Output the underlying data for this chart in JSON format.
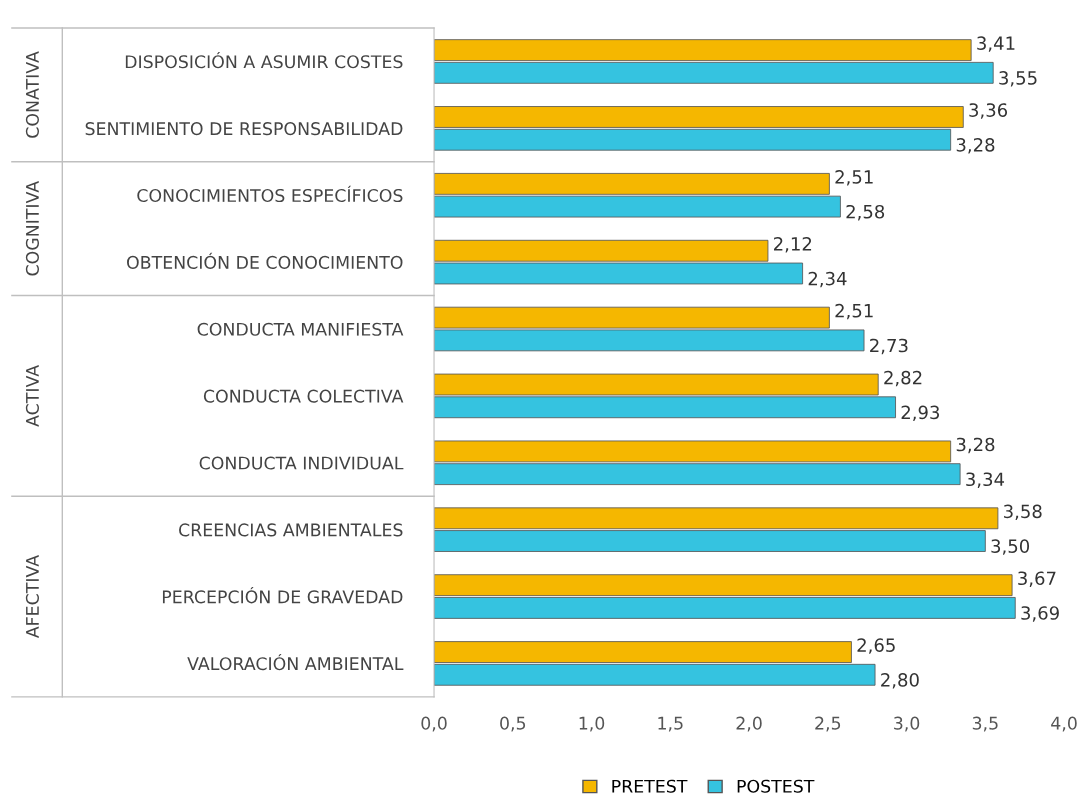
{
  "chart_data": {
    "type": "bar",
    "orientation": "horizontal",
    "categories": [
      "DISPOSICIÓN A ASUMIR COSTES",
      "SENTIMIENTO DE RESPONSABILIDAD",
      "CONOCIMIENTOS ESPECÍFICOS",
      "OBTENCIÓN DE CONOCIMIENTO",
      "CONDUCTA MANIFIESTA",
      "CONDUCTA COLECTIVA",
      "CONDUCTA INDIVIDUAL",
      "CREENCIAS AMBIENTALES",
      "PERCEPCIÓN DE GRAVEDAD",
      "VALORACIÓN AMBIENTAL"
    ],
    "series": [
      {
        "name": "PRETEST",
        "color": "#f5b700",
        "values": [
          3.41,
          3.36,
          2.51,
          2.12,
          2.51,
          2.82,
          3.28,
          3.58,
          3.67,
          2.65
        ],
        "value_labels": [
          "3,41",
          "3,36",
          "2,51",
          "2,12",
          "2,51",
          "2,82",
          "3,28",
          "3,58",
          "3,67",
          "2,65"
        ]
      },
      {
        "name": "POSTEST",
        "color": "#35c3e0",
        "values": [
          3.55,
          3.28,
          2.58,
          2.34,
          2.73,
          2.93,
          3.34,
          3.5,
          3.69,
          2.8
        ],
        "value_labels": [
          "3,55",
          "3,28",
          "2,58",
          "2,34",
          "2,73",
          "2,93",
          "3,34",
          "3,50",
          "3,69",
          "2,80"
        ]
      }
    ],
    "xlim": [
      0,
      4
    ],
    "xticks": [
      {
        "value": 0,
        "label": "0,0"
      },
      {
        "value": 0.5,
        "label": "0,5"
      },
      {
        "value": 1,
        "label": "1,0"
      },
      {
        "value": 1.5,
        "label": "1,5"
      },
      {
        "value": 2,
        "label": "2,0"
      },
      {
        "value": 2.5,
        "label": "2,5"
      },
      {
        "value": 3,
        "label": "3,0"
      },
      {
        "value": 3.5,
        "label": "3,5"
      },
      {
        "value": 4,
        "label": "4,0"
      }
    ],
    "annotations": [
      "CONATIVA",
      "COGNITIVA",
      "ACTIVA",
      "AFECTIVA"
    ],
    "grid": false,
    "legend": "bottom"
  }
}
